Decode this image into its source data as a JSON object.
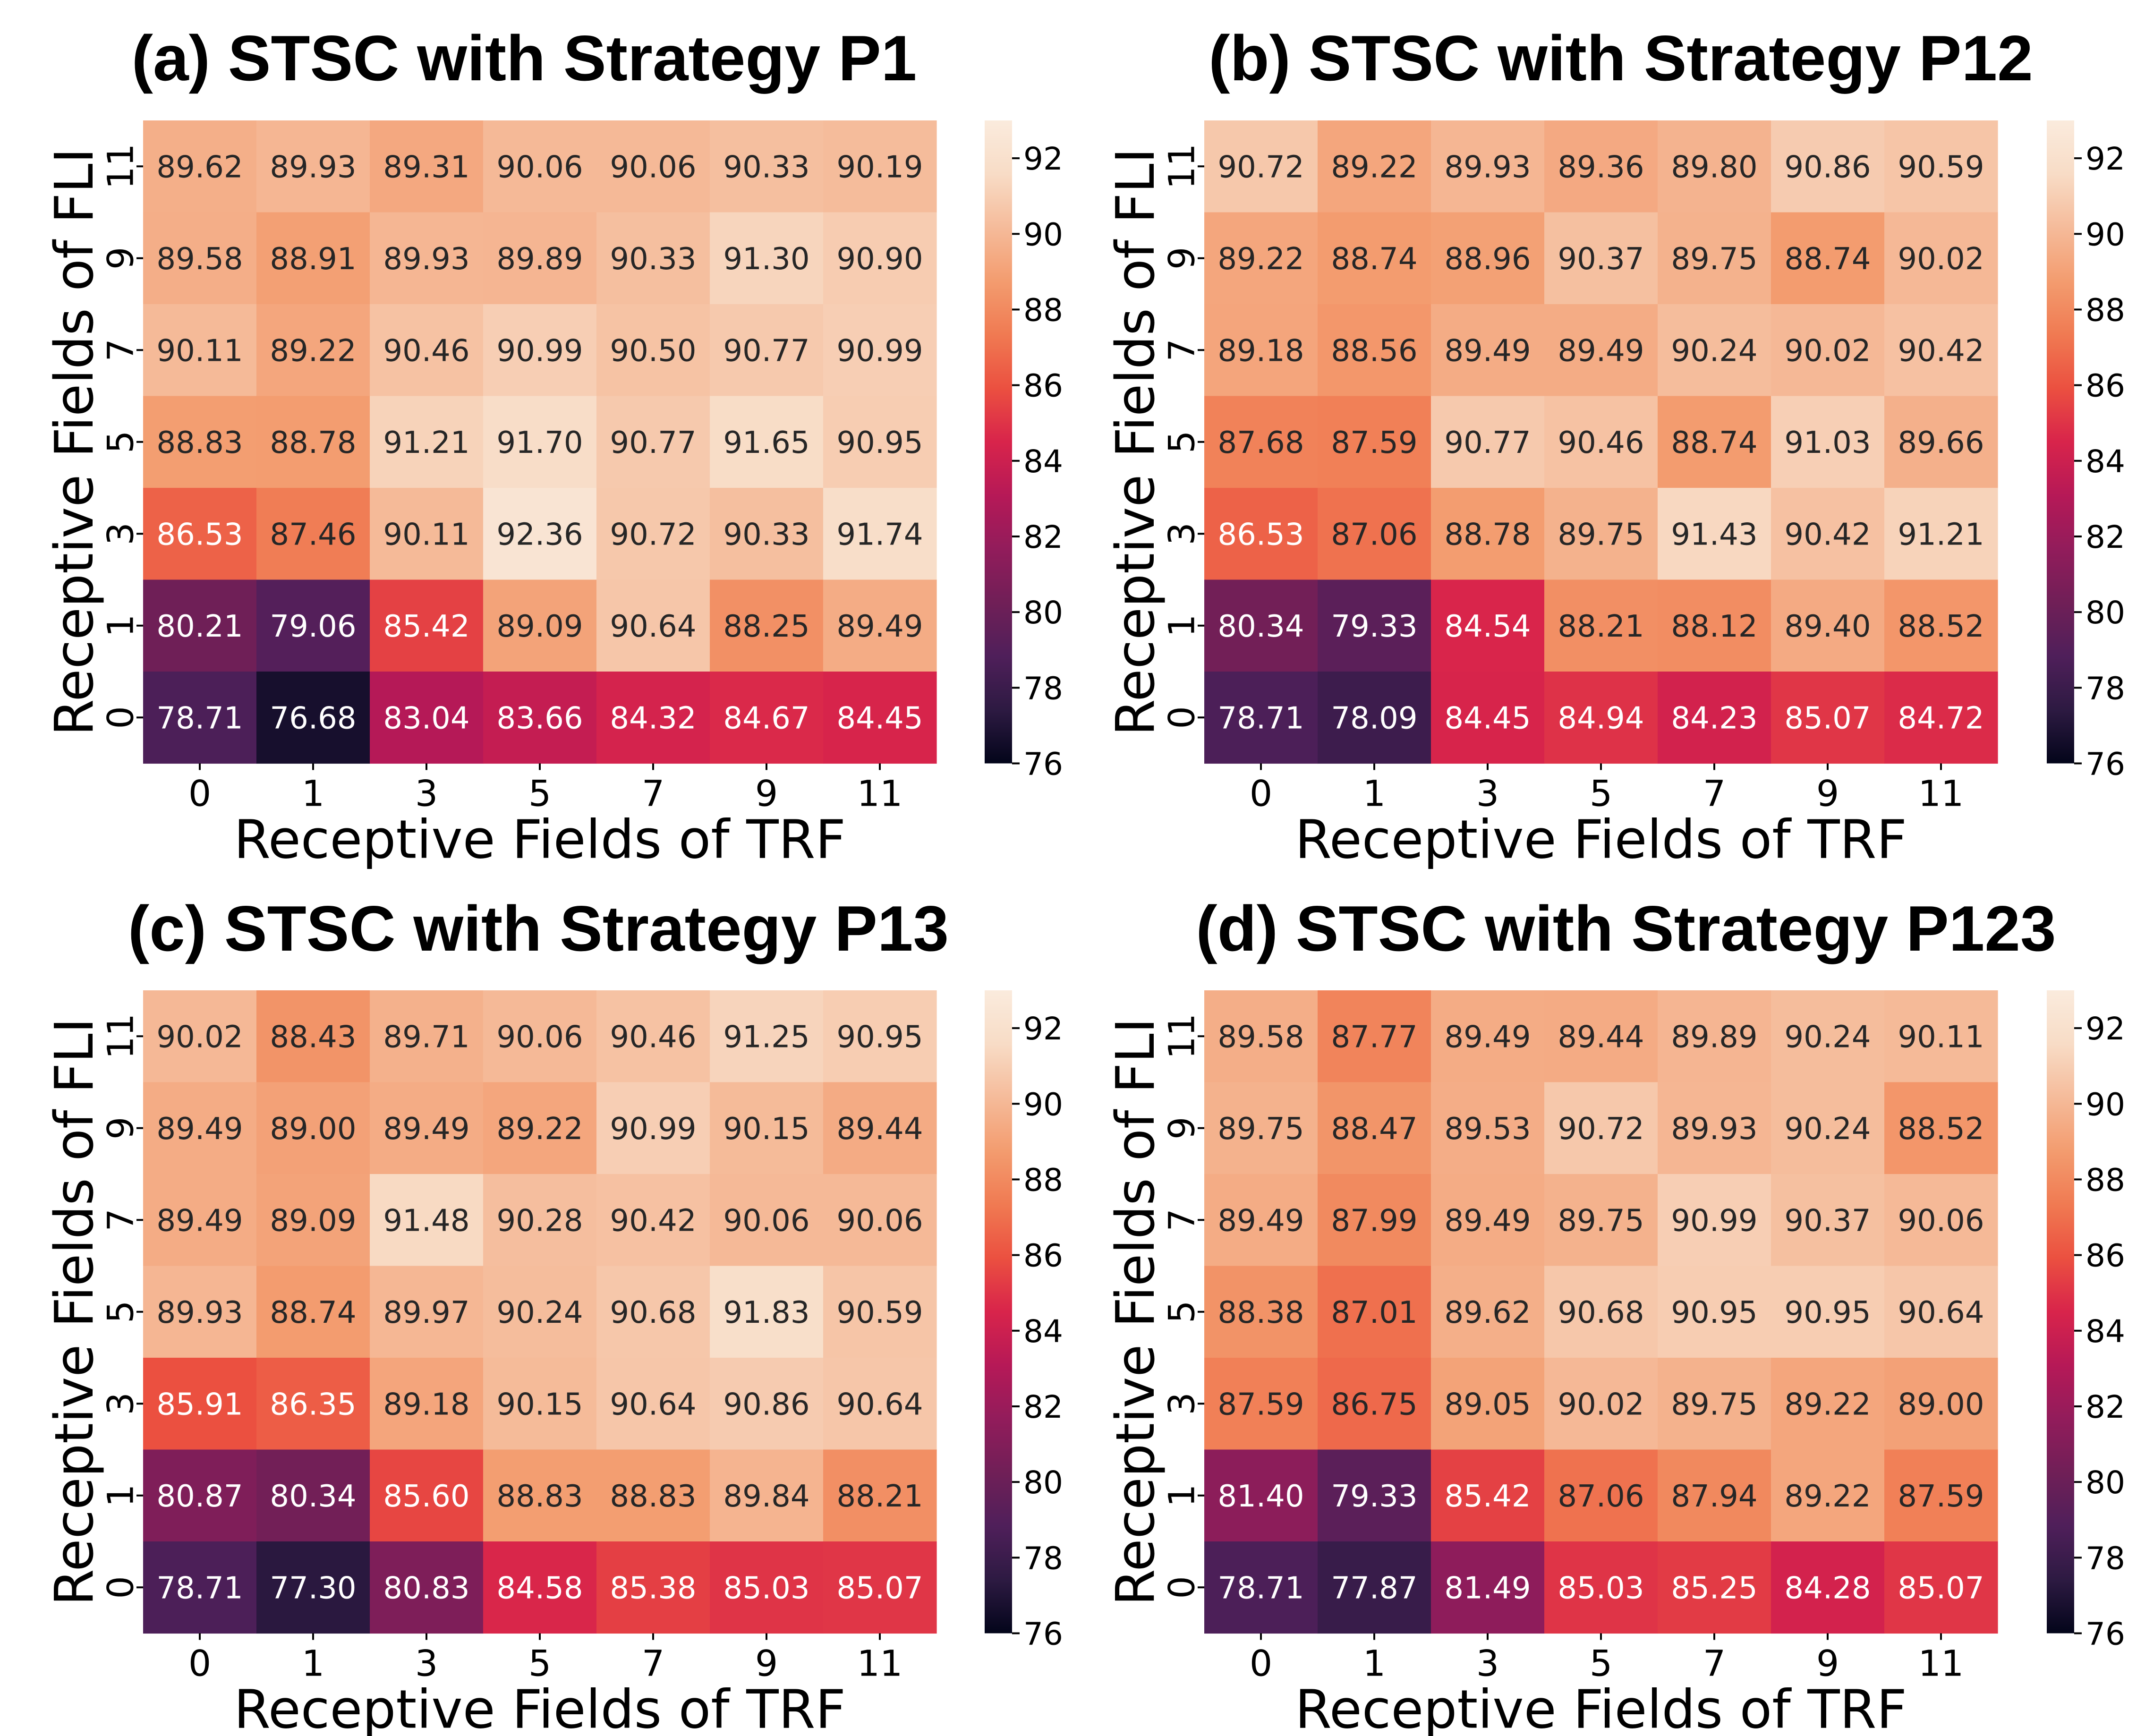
{
  "colormap": {
    "name": "rocket",
    "stops": [
      "#03051a",
      "#2d1a42",
      "#4f1f5a",
      "#701f57",
      "#921c5b",
      "#b61957",
      "#d8244b",
      "#eb5040",
      "#f07a52",
      "#f39c6f",
      "#f5bb9a",
      "#f8dcc6",
      "#faebdd"
    ],
    "dark_text": "#262626",
    "light_text": "#ffffff"
  },
  "chart_data": [
    {
      "type": "heatmap",
      "title": "(a) STSC with Strategy P1",
      "xlabel": "Receptive Fields of TRF",
      "ylabel": "Receptive Fields of FLI",
      "x": [
        "0",
        "1",
        "3",
        "5",
        "7",
        "9",
        "11"
      ],
      "y": [
        "11",
        "9",
        "7",
        "5",
        "3",
        "1",
        "0"
      ],
      "values": [
        [
          89.62,
          89.93,
          89.31,
          90.06,
          90.06,
          90.33,
          90.19
        ],
        [
          89.58,
          88.91,
          89.93,
          89.89,
          90.33,
          91.3,
          90.9
        ],
        [
          90.11,
          89.22,
          90.46,
          90.99,
          90.5,
          90.77,
          90.99
        ],
        [
          88.83,
          88.78,
          91.21,
          91.7,
          90.77,
          91.65,
          90.95
        ],
        [
          86.53,
          87.46,
          90.11,
          92.36,
          90.72,
          90.33,
          91.74
        ],
        [
          80.21,
          79.06,
          85.42,
          89.09,
          90.64,
          88.25,
          89.49
        ],
        [
          78.71,
          76.68,
          83.04,
          83.66,
          84.32,
          84.67,
          84.45
        ]
      ],
      "value_labels": [
        [
          "89.62",
          "89.93",
          "89.31",
          "90.06",
          "90.06",
          "90.33",
          "90.19"
        ],
        [
          "89.58",
          "88.91",
          "89.93",
          "89.89",
          "90.33",
          "91.30",
          "90.90"
        ],
        [
          "90.11",
          "89.22",
          "90.46",
          "90.99",
          "90.50",
          "90.77",
          "90.99"
        ],
        [
          "88.83",
          "88.78",
          "91.21",
          "91.70",
          "90.77",
          "91.65",
          "90.95"
        ],
        [
          "86.53",
          "87.46",
          "90.11",
          "92.36",
          "90.72",
          "90.33",
          "91.74"
        ],
        [
          "80.21",
          "79.06",
          "85.42",
          "89.09",
          "90.64",
          "88.25",
          "89.49"
        ],
        [
          "78.71",
          "76.68",
          "83.04",
          "83.66",
          "84.32",
          "84.67",
          "84.45"
        ]
      ],
      "colorbar": {
        "range": [
          76,
          93
        ],
        "ticks": [
          "92",
          "90",
          "88",
          "86",
          "84",
          "82",
          "80",
          "78",
          "76"
        ]
      }
    },
    {
      "type": "heatmap",
      "title": "(b) STSC with Strategy P12",
      "xlabel": "Receptive Fields of TRF",
      "ylabel": "Receptive Fields of FLI",
      "x": [
        "0",
        "1",
        "3",
        "5",
        "7",
        "9",
        "11"
      ],
      "y": [
        "11",
        "9",
        "7",
        "5",
        "3",
        "1",
        "0"
      ],
      "values": [
        [
          90.72,
          89.22,
          89.93,
          89.36,
          89.8,
          90.86,
          90.59
        ],
        [
          89.22,
          88.74,
          88.96,
          90.37,
          89.75,
          88.74,
          90.02
        ],
        [
          89.18,
          88.56,
          89.49,
          89.49,
          90.24,
          90.02,
          90.42
        ],
        [
          87.68,
          87.59,
          90.77,
          90.46,
          88.74,
          91.03,
          89.66
        ],
        [
          86.53,
          87.06,
          88.78,
          89.75,
          91.43,
          90.42,
          91.21
        ],
        [
          80.34,
          79.33,
          84.54,
          88.21,
          88.12,
          89.4,
          88.52
        ],
        [
          78.71,
          78.09,
          84.45,
          84.94,
          84.23,
          85.07,
          84.72
        ]
      ],
      "value_labels": [
        [
          "90.72",
          "89.22",
          "89.93",
          "89.36",
          "89.80",
          "90.86",
          "90.59"
        ],
        [
          "89.22",
          "88.74",
          "88.96",
          "90.37",
          "89.75",
          "88.74",
          "90.02"
        ],
        [
          "89.18",
          "88.56",
          "89.49",
          "89.49",
          "90.24",
          "90.02",
          "90.42"
        ],
        [
          "87.68",
          "87.59",
          "90.77",
          "90.46",
          "88.74",
          "91.03",
          "89.66"
        ],
        [
          "86.53",
          "87.06",
          "88.78",
          "89.75",
          "91.43",
          "90.42",
          "91.21"
        ],
        [
          "80.34",
          "79.33",
          "84.54",
          "88.21",
          "88.12",
          "89.40",
          "88.52"
        ],
        [
          "78.71",
          "78.09",
          "84.45",
          "84.94",
          "84.23",
          "85.07",
          "84.72"
        ]
      ],
      "colorbar": {
        "range": [
          76,
          93
        ],
        "ticks": [
          "92",
          "90",
          "88",
          "86",
          "84",
          "82",
          "80",
          "78",
          "76"
        ]
      }
    },
    {
      "type": "heatmap",
      "title": "(c) STSC with Strategy P13",
      "xlabel": "Receptive Fields of TRF",
      "ylabel": "Receptive Fields of FLI",
      "x": [
        "0",
        "1",
        "3",
        "5",
        "7",
        "9",
        "11"
      ],
      "y": [
        "11",
        "9",
        "7",
        "5",
        "3",
        "1",
        "0"
      ],
      "values": [
        [
          90.02,
          88.43,
          89.71,
          90.06,
          90.46,
          91.25,
          90.95
        ],
        [
          89.49,
          89.0,
          89.49,
          89.22,
          90.99,
          90.15,
          89.44
        ],
        [
          89.49,
          89.09,
          91.48,
          90.28,
          90.42,
          90.06,
          90.06
        ],
        [
          89.93,
          88.74,
          89.97,
          90.24,
          90.68,
          91.83,
          90.59
        ],
        [
          85.91,
          86.35,
          89.18,
          90.15,
          90.64,
          90.86,
          90.64
        ],
        [
          80.87,
          80.34,
          85.6,
          88.83,
          88.83,
          89.84,
          88.21
        ],
        [
          78.71,
          77.3,
          80.83,
          84.58,
          85.38,
          85.03,
          85.07
        ]
      ],
      "value_labels": [
        [
          "90.02",
          "88.43",
          "89.71",
          "90.06",
          "90.46",
          "91.25",
          "90.95"
        ],
        [
          "89.49",
          "89.00",
          "89.49",
          "89.22",
          "90.99",
          "90.15",
          "89.44"
        ],
        [
          "89.49",
          "89.09",
          "91.48",
          "90.28",
          "90.42",
          "90.06",
          "90.06"
        ],
        [
          "89.93",
          "88.74",
          "89.97",
          "90.24",
          "90.68",
          "91.83",
          "90.59"
        ],
        [
          "85.91",
          "86.35",
          "89.18",
          "90.15",
          "90.64",
          "90.86",
          "90.64"
        ],
        [
          "80.87",
          "80.34",
          "85.60",
          "88.83",
          "88.83",
          "89.84",
          "88.21"
        ],
        [
          "78.71",
          "77.30",
          "80.83",
          "84.58",
          "85.38",
          "85.03",
          "85.07"
        ]
      ],
      "colorbar": {
        "range": [
          76,
          93
        ],
        "ticks": [
          "92",
          "90",
          "88",
          "86",
          "84",
          "82",
          "80",
          "78",
          "76"
        ]
      }
    },
    {
      "type": "heatmap",
      "title": "(d) STSC with Strategy P123",
      "xlabel": "Receptive Fields of TRF",
      "ylabel": "Receptive Fields of FLI",
      "x": [
        "0",
        "1",
        "3",
        "5",
        "7",
        "9",
        "11"
      ],
      "y": [
        "11",
        "9",
        "7",
        "5",
        "3",
        "1",
        "0"
      ],
      "values": [
        [
          89.58,
          87.77,
          89.49,
          89.44,
          89.89,
          90.24,
          90.11
        ],
        [
          89.75,
          88.47,
          89.53,
          90.72,
          89.93,
          90.24,
          88.52
        ],
        [
          89.49,
          87.99,
          89.49,
          89.75,
          90.99,
          90.37,
          90.06
        ],
        [
          88.38,
          87.01,
          89.62,
          90.68,
          90.95,
          90.95,
          90.64
        ],
        [
          87.59,
          86.75,
          89.05,
          90.02,
          89.75,
          89.22,
          89.0
        ],
        [
          81.4,
          79.33,
          85.42,
          87.06,
          87.94,
          89.22,
          87.59
        ],
        [
          78.71,
          77.87,
          81.49,
          85.03,
          85.25,
          84.28,
          85.07
        ]
      ],
      "value_labels": [
        [
          "89.58",
          "87.77",
          "89.49",
          "89.44",
          "89.89",
          "90.24",
          "90.11"
        ],
        [
          "89.75",
          "88.47",
          "89.53",
          "90.72",
          "89.93",
          "90.24",
          "88.52"
        ],
        [
          "89.49",
          "87.99",
          "89.49",
          "89.75",
          "90.99",
          "90.37",
          "90.06"
        ],
        [
          "88.38",
          "87.01",
          "89.62",
          "90.68",
          "90.95",
          "90.95",
          "90.64"
        ],
        [
          "87.59",
          "86.75",
          "89.05",
          "90.02",
          "89.75",
          "89.22",
          "89.00"
        ],
        [
          "81.40",
          "79.33",
          "85.42",
          "87.06",
          "87.94",
          "89.22",
          "87.59"
        ],
        [
          "78.71",
          "77.87",
          "81.49",
          "85.03",
          "85.25",
          "84.28",
          "85.07"
        ]
      ],
      "colorbar": {
        "range": [
          76,
          93
        ],
        "ticks": [
          "92",
          "90",
          "88",
          "86",
          "84",
          "82",
          "80",
          "78",
          "76"
        ]
      }
    }
  ]
}
